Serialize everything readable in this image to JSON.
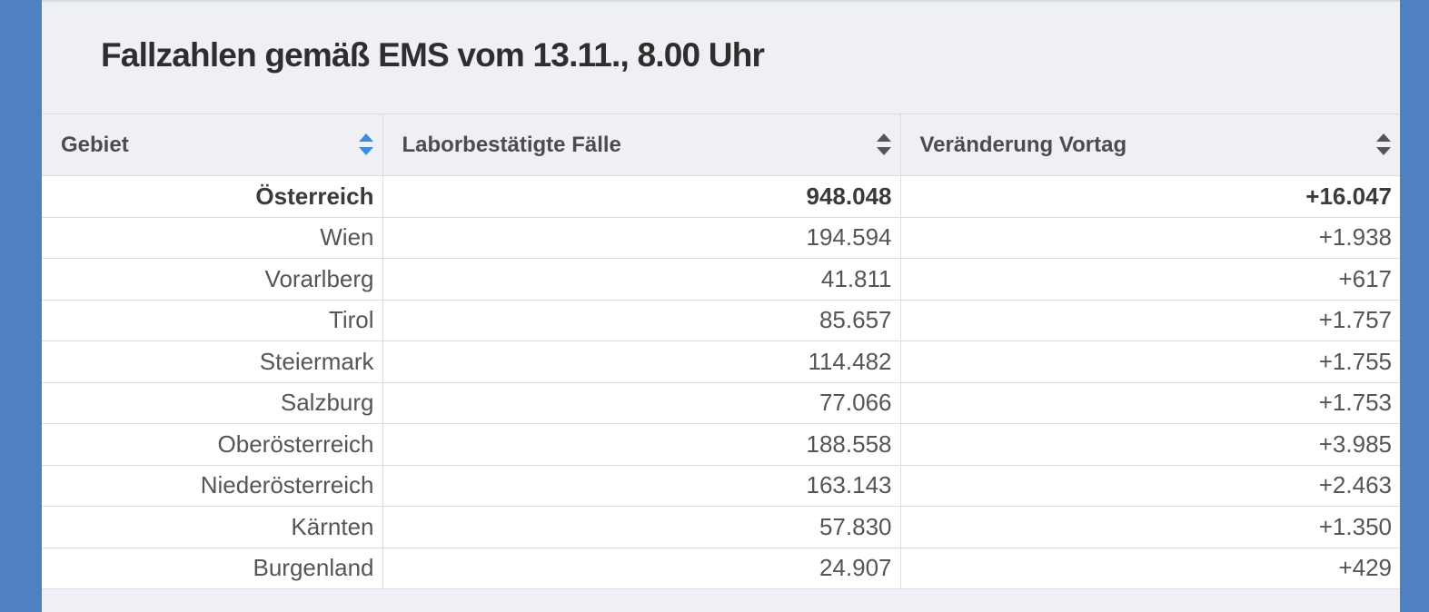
{
  "title": "Fallzahlen gemäß EMS vom 13.11., 8.00 Uhr",
  "columns": [
    {
      "label": "Gebiet",
      "sort_state": "active"
    },
    {
      "label": "Laborbestätigte Fälle",
      "sort_state": "none"
    },
    {
      "label": "Veränderung Vortag",
      "sort_state": "none"
    }
  ],
  "rows": [
    {
      "gebiet": "Österreich",
      "faelle": "948.048",
      "veraenderung": "+16.047"
    },
    {
      "gebiet": "Wien",
      "faelle": "194.594",
      "veraenderung": "+1.938"
    },
    {
      "gebiet": "Vorarlberg",
      "faelle": "41.811",
      "veraenderung": "+617"
    },
    {
      "gebiet": "Tirol",
      "faelle": "85.657",
      "veraenderung": "+1.757"
    },
    {
      "gebiet": "Steiermark",
      "faelle": "114.482",
      "veraenderung": "+1.755"
    },
    {
      "gebiet": "Salzburg",
      "faelle": "77.066",
      "veraenderung": "+1.753"
    },
    {
      "gebiet": "Oberösterreich",
      "faelle": "188.558",
      "veraenderung": "+3.985"
    },
    {
      "gebiet": "Niederösterreich",
      "faelle": "163.143",
      "veraenderung": "+2.463"
    },
    {
      "gebiet": "Kärnten",
      "faelle": "57.830",
      "veraenderung": "+1.350"
    },
    {
      "gebiet": "Burgenland",
      "faelle": "24.907",
      "veraenderung": "+429"
    }
  ],
  "colors": {
    "page_background": "#4f80c2",
    "panel_background": "#eef0f5",
    "sort_active": "#3d8ae0"
  },
  "icons": {
    "sort": "sort-arrows-icon"
  }
}
